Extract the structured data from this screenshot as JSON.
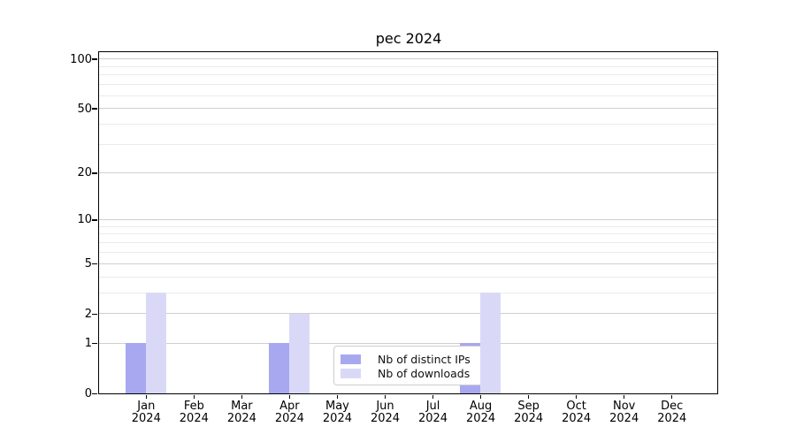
{
  "figure": {
    "title": "pec 2024"
  },
  "chart_data": {
    "type": "bar",
    "title": "pec 2024",
    "categories": [
      "Jan",
      "Feb",
      "Mar",
      "Apr",
      "May",
      "Jun",
      "Jul",
      "Aug",
      "Sep",
      "Oct",
      "Nov",
      "Dec"
    ],
    "x_year_label": "2024",
    "series": [
      {
        "name": "Nb of distinct IPs",
        "color": "#a8a8f0",
        "values": [
          1,
          0,
          0,
          1,
          0,
          0,
          0,
          1,
          0,
          0,
          0,
          0
        ]
      },
      {
        "name": "Nb of downloads",
        "color": "#d9d9f7",
        "values": [
          3,
          0,
          0,
          2,
          0,
          0,
          0,
          3,
          0,
          0,
          0,
          0
        ]
      }
    ],
    "y_axis": {
      "scale": "log1p",
      "tick_values": [
        0,
        1,
        2,
        5,
        10,
        20,
        50,
        100
      ],
      "minor_gridline_values": [
        3,
        4,
        6,
        7,
        8,
        9,
        30,
        40,
        60,
        70,
        80,
        90
      ],
      "ylim": [
        0,
        110
      ]
    },
    "legend": {
      "position": "lower-center-inside",
      "entries": [
        "Nb of distinct IPs",
        "Nb of downloads"
      ]
    },
    "grid": true
  },
  "colors": {
    "bar_distinct_ips": "#a8a8f0",
    "bar_downloads": "#d9d9f7",
    "grid_major": "#cfcfcf",
    "grid_minor": "#ebebeb",
    "axis": "#000000",
    "legend_border": "#cccccc"
  }
}
